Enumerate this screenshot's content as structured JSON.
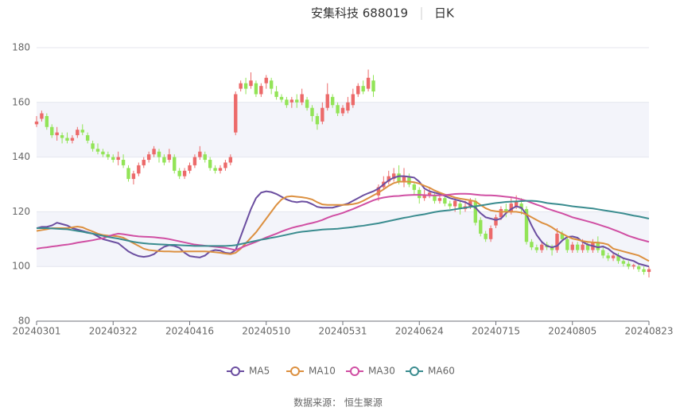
{
  "chart_data": {
    "type": "candlestick",
    "title": "安集科技 688019",
    "subtitle": "日K",
    "source": "数据来源： 恒生聚源",
    "up_color": "#ec6a6a",
    "down_color": "#92e457",
    "ylim": [
      80,
      180
    ],
    "yticks": [
      80,
      100,
      120,
      140,
      160,
      180
    ],
    "grid": true,
    "legend": "bottom",
    "categories": [
      "20240301",
      null,
      null,
      null,
      null,
      null,
      null,
      null,
      null,
      null,
      null,
      null,
      null,
      null,
      null,
      "20240322",
      null,
      null,
      null,
      null,
      null,
      null,
      null,
      null,
      null,
      null,
      null,
      null,
      null,
      null,
      "20240416",
      null,
      null,
      null,
      null,
      null,
      null,
      null,
      null,
      null,
      null,
      null,
      null,
      null,
      null,
      "20240510",
      null,
      null,
      null,
      null,
      null,
      null,
      null,
      null,
      null,
      null,
      null,
      null,
      null,
      null,
      "20240531",
      null,
      null,
      null,
      null,
      null,
      null,
      null,
      null,
      null,
      null,
      null,
      null,
      null,
      null,
      "20240624",
      null,
      null,
      null,
      null,
      null,
      null,
      null,
      null,
      null,
      null,
      null,
      null,
      null,
      null,
      "20240715",
      null,
      null,
      null,
      null,
      null,
      null,
      null,
      null,
      null,
      null,
      null,
      null,
      null,
      null,
      "20240805",
      null,
      null,
      null,
      null,
      null,
      null,
      null,
      null,
      null,
      null,
      null,
      null,
      null,
      null,
      "20240823"
    ],
    "ohlc": [
      [
        152,
        153,
        151,
        155
      ],
      [
        154,
        156,
        153,
        157
      ],
      [
        155,
        151,
        150,
        156
      ],
      [
        151,
        148,
        147,
        152
      ],
      [
        148,
        149,
        146,
        151
      ],
      [
        148,
        147,
        145,
        149
      ],
      [
        147,
        146,
        145,
        149
      ],
      [
        146,
        147,
        145,
        148
      ],
      [
        148,
        150,
        147,
        151
      ],
      [
        150,
        149,
        148,
        152
      ],
      [
        148,
        146,
        145,
        149
      ],
      [
        145,
        143,
        142,
        146
      ],
      [
        143,
        142,
        141,
        145
      ],
      [
        142,
        141,
        140,
        143
      ],
      [
        141,
        140,
        139,
        142
      ],
      [
        140,
        139,
        138,
        141
      ],
      [
        139,
        140,
        137,
        142
      ],
      [
        139,
        137,
        136,
        141
      ],
      [
        136,
        132,
        131,
        137
      ],
      [
        132,
        134,
        130,
        135
      ],
      [
        134,
        137,
        133,
        138
      ],
      [
        137,
        139,
        136,
        140
      ],
      [
        139,
        141,
        138,
        142
      ],
      [
        141,
        143,
        140,
        144
      ],
      [
        142,
        140,
        138,
        143
      ],
      [
        140,
        138,
        137,
        141
      ],
      [
        139,
        141,
        138,
        143
      ],
      [
        140,
        135,
        134,
        141
      ],
      [
        135,
        133,
        132,
        136
      ],
      [
        133,
        135,
        132,
        136
      ],
      [
        135,
        137,
        134,
        138
      ],
      [
        137,
        140,
        136,
        141
      ],
      [
        140,
        142,
        139,
        144
      ],
      [
        141,
        139,
        138,
        142
      ],
      [
        139,
        136,
        135,
        140
      ],
      [
        136,
        135,
        134,
        137
      ],
      [
        135,
        136,
        134,
        137
      ],
      [
        136,
        138,
        135,
        139
      ],
      [
        138,
        140,
        137,
        141
      ],
      [
        149,
        163,
        148,
        164
      ],
      [
        165,
        167,
        164,
        168
      ],
      [
        167,
        165,
        163,
        169
      ],
      [
        166,
        168,
        165,
        171
      ],
      [
        167,
        163,
        162,
        168
      ],
      [
        163,
        166,
        162,
        167
      ],
      [
        167,
        169,
        165,
        170
      ],
      [
        168,
        165,
        163,
        169
      ],
      [
        164,
        162,
        161,
        166
      ],
      [
        162,
        161,
        160,
        163
      ],
      [
        161,
        159,
        158,
        162
      ],
      [
        160,
        161,
        158,
        162
      ],
      [
        161,
        160,
        158,
        163
      ],
      [
        160,
        163,
        159,
        165
      ],
      [
        161,
        158,
        157,
        162
      ],
      [
        158,
        155,
        153,
        159
      ],
      [
        155,
        152,
        150,
        156
      ],
      [
        153,
        158,
        152,
        160
      ],
      [
        158,
        163,
        157,
        167
      ],
      [
        162,
        159,
        158,
        163
      ],
      [
        159,
        156,
        155,
        160
      ],
      [
        156,
        158,
        155,
        159
      ],
      [
        157,
        160,
        156,
        162
      ],
      [
        159,
        163,
        158,
        165
      ],
      [
        163,
        166,
        162,
        167
      ],
      [
        166,
        164,
        163,
        168
      ],
      [
        165,
        169,
        164,
        172
      ],
      [
        168,
        164,
        162,
        170
      ],
      [
        126,
        129,
        124,
        130
      ],
      [
        129,
        131,
        128,
        133
      ],
      [
        131,
        133,
        130,
        135
      ],
      [
        132,
        134,
        131,
        136
      ],
      [
        134,
        131,
        130,
        137
      ],
      [
        131,
        133,
        129,
        136
      ],
      [
        133,
        130,
        129,
        134
      ],
      [
        130,
        128,
        126,
        131
      ],
      [
        128,
        125,
        123,
        129
      ],
      [
        125,
        126,
        124,
        128
      ],
      [
        126,
        127,
        125,
        129
      ],
      [
        126,
        124,
        123,
        127
      ],
      [
        124,
        125,
        123,
        126
      ],
      [
        125,
        123,
        122,
        126
      ],
      [
        123,
        122,
        121,
        124
      ],
      [
        122,
        124,
        120,
        125
      ],
      [
        123,
        121,
        119,
        124
      ],
      [
        121,
        122,
        120,
        124
      ],
      [
        122,
        124,
        121,
        125
      ],
      [
        124,
        116,
        115,
        125
      ],
      [
        117,
        112,
        111,
        118
      ],
      [
        112,
        110,
        109,
        113
      ],
      [
        110,
        114,
        109,
        115
      ],
      [
        115,
        118,
        114,
        119
      ],
      [
        118,
        121,
        117,
        122
      ],
      [
        121,
        120,
        118,
        123
      ],
      [
        120,
        123,
        119,
        125
      ],
      [
        122,
        124,
        121,
        126
      ],
      [
        123,
        121,
        119,
        125
      ],
      [
        121,
        109,
        108,
        122
      ],
      [
        109,
        107,
        106,
        110
      ],
      [
        107,
        106,
        105,
        108
      ],
      [
        106,
        108,
        105,
        109
      ],
      [
        108,
        107,
        106,
        109
      ],
      [
        107,
        106,
        104,
        108
      ],
      [
        106,
        112,
        105,
        114
      ],
      [
        112,
        110,
        109,
        113
      ],
      [
        110,
        106,
        105,
        111
      ],
      [
        106,
        108,
        105,
        109
      ],
      [
        108,
        106,
        105,
        109
      ],
      [
        106,
        108,
        105,
        110
      ],
      [
        108,
        106,
        105,
        109
      ],
      [
        106,
        109,
        105,
        110
      ],
      [
        109,
        106,
        105,
        111
      ],
      [
        106,
        104,
        103,
        107
      ],
      [
        104,
        103,
        102,
        105
      ],
      [
        103,
        104,
        102,
        105
      ],
      [
        104,
        102,
        101,
        105
      ],
      [
        102,
        101,
        100,
        103
      ],
      [
        101,
        100,
        99,
        102
      ],
      [
        100,
        100.5,
        99,
        101
      ],
      [
        100,
        99,
        98,
        101
      ],
      [
        99,
        98,
        97,
        100
      ],
      [
        98,
        99,
        96,
        100
      ]
    ],
    "series": [
      {
        "name": "MA5",
        "color": "#6b4ea0",
        "values": [
          114,
          114.5,
          114.5,
          115,
          116,
          115.5,
          115,
          114,
          113.5,
          113,
          112.5,
          112,
          111,
          110,
          109.5,
          109,
          108.5,
          107,
          105.5,
          104.5,
          103.8,
          103.5,
          103.8,
          104.5,
          106,
          107.2,
          107.8,
          107.5,
          106.8,
          105,
          103.8,
          103.5,
          103.3,
          104,
          105.5,
          106,
          105.8,
          105,
          104.8,
          106,
          111,
          116,
          121,
          125,
          127,
          127.5,
          127.2,
          126.5,
          125.5,
          124.5,
          123.8,
          123.5,
          123.8,
          123.6,
          122.8,
          121.8,
          121.5,
          121.5,
          121.5,
          122,
          122.5,
          123,
          124,
          125,
          126,
          126.8,
          127.5,
          128.5,
          130,
          131.5,
          132.5,
          133,
          133,
          132.8,
          132.5,
          131,
          128.5,
          127.5,
          127,
          126.5,
          125.8,
          125,
          124.5,
          124,
          123.5,
          122.5,
          121.5,
          119.5,
          118,
          117.5,
          117,
          117.5,
          119.5,
          121,
          122,
          121.5,
          119,
          115,
          111.5,
          109,
          107.5,
          107,
          107.5,
          109.5,
          110.8,
          111,
          110.5,
          109,
          108,
          107.5,
          107,
          107.3,
          106.5,
          105,
          104,
          103,
          102.5,
          102,
          101,
          100.5,
          100
        ]
      },
      {
        "name": "MA10",
        "color": "#dc9040",
        "values": [
          113,
          113.3,
          113.6,
          114,
          114,
          114,
          114,
          114.3,
          114.6,
          114.3,
          113.5,
          112.8,
          112,
          111.5,
          111.3,
          111.2,
          111,
          110.5,
          109.5,
          108.5,
          107.5,
          106.5,
          106,
          105.8,
          105.6,
          105.5,
          105.5,
          105.4,
          105.4,
          105.5,
          105.5,
          105.5,
          105.5,
          105.5,
          105.4,
          105.2,
          105,
          104.7,
          104.5,
          105,
          106.5,
          108.5,
          110.5,
          112.5,
          115,
          117.5,
          120,
          122.5,
          124.5,
          125.5,
          125.7,
          125.5,
          125.3,
          125,
          124.5,
          123.5,
          122.7,
          122.5,
          122.5,
          122.5,
          122.5,
          122.6,
          122.8,
          123.2,
          124,
          125,
          126,
          127,
          128.2,
          129.5,
          130.5,
          131,
          131,
          131,
          130.8,
          130.3,
          129.5,
          128.8,
          127.8,
          127,
          126.3,
          125.8,
          125.2,
          124.8,
          124.5,
          124.2,
          123.8,
          122.5,
          121.3,
          120.5,
          120.2,
          120,
          120,
          120,
          120,
          119.7,
          119,
          118,
          117,
          116,
          115.3,
          114.3,
          113,
          112,
          111,
          110.2,
          109.8,
          109.3,
          109,
          108.8,
          108.7,
          108.5,
          108,
          106.5,
          106,
          105.5,
          105,
          104.5,
          104,
          103,
          102
        ]
      },
      {
        "name": "MA30",
        "color": "#d04fa3",
        "values": [
          106.5,
          106.8,
          107,
          107.3,
          107.5,
          107.8,
          108,
          108.3,
          108.7,
          109,
          109.3,
          109.6,
          110,
          110.3,
          111,
          111.6,
          112,
          111.8,
          111.5,
          111.2,
          111,
          110.9,
          110.8,
          110.7,
          110.5,
          110.3,
          110,
          109.6,
          109.2,
          108.8,
          108.4,
          108,
          107.8,
          107.6,
          107.4,
          107.2,
          107,
          106.8,
          106.4,
          106,
          106.8,
          107.6,
          108.3,
          109,
          109.8,
          110.6,
          111.3,
          112,
          112.8,
          113.5,
          114.1,
          114.6,
          115,
          115.5,
          115.9,
          116.4,
          117,
          117.8,
          118.5,
          119,
          119.6,
          120.3,
          121,
          121.8,
          122.6,
          123.4,
          124.2,
          124.8,
          125.2,
          125.5,
          125.7,
          125.8,
          126,
          126.1,
          126.2,
          126.2,
          126.1,
          126,
          126,
          126,
          126.1,
          126.3,
          126.5,
          126.6,
          126.6,
          126.5,
          126.3,
          126.1,
          126,
          126,
          125.9,
          125.7,
          125.5,
          125.3,
          125,
          124.5,
          124,
          123.3,
          122.6,
          122,
          121.2,
          120.6,
          120,
          119.4,
          118.7,
          118,
          117.5,
          117,
          116.5,
          116,
          115.4,
          114.8,
          114.2,
          113.5,
          112.8,
          112,
          111.2,
          110.6,
          110,
          109.5,
          109
        ]
      },
      {
        "name": "MA60",
        "color": "#3a8c8f",
        "values": [
          114,
          114,
          114,
          113.9,
          113.8,
          113.7,
          113.6,
          113.3,
          113,
          112.7,
          112.3,
          112,
          111.6,
          111.2,
          110.8,
          110.5,
          110.2,
          109.8,
          109.4,
          109,
          108.7,
          108.5,
          108.3,
          108.2,
          108.1,
          108,
          107.9,
          107.9,
          107.8,
          107.7,
          107.6,
          107.5,
          107.5,
          107.5,
          107.5,
          107.5,
          107.5,
          107.5,
          107.6,
          107.8,
          108.2,
          108.6,
          109,
          109.4,
          109.8,
          110.1,
          110.5,
          110.8,
          111.2,
          111.6,
          112,
          112.4,
          112.7,
          112.9,
          113.1,
          113.3,
          113.5,
          113.6,
          113.7,
          113.8,
          114,
          114.2,
          114.4,
          114.7,
          114.9,
          115.2,
          115.5,
          115.8,
          116.2,
          116.6,
          117,
          117.4,
          117.8,
          118.1,
          118.5,
          118.8,
          119.1,
          119.5,
          119.9,
          120.2,
          120.4,
          120.6,
          120.9,
          121.2,
          121.5,
          121.8,
          122,
          122.3,
          122.6,
          122.9,
          123.2,
          123.4,
          123.6,
          123.7,
          123.8,
          123.9,
          124,
          124,
          123.9,
          123.6,
          123.2,
          123,
          122.8,
          122.6,
          122.3,
          122,
          121.8,
          121.6,
          121.4,
          121.2,
          120.9,
          120.6,
          120.3,
          120,
          119.7,
          119.4,
          119,
          118.6,
          118.3,
          117.9,
          117.5
        ]
      }
    ]
  }
}
